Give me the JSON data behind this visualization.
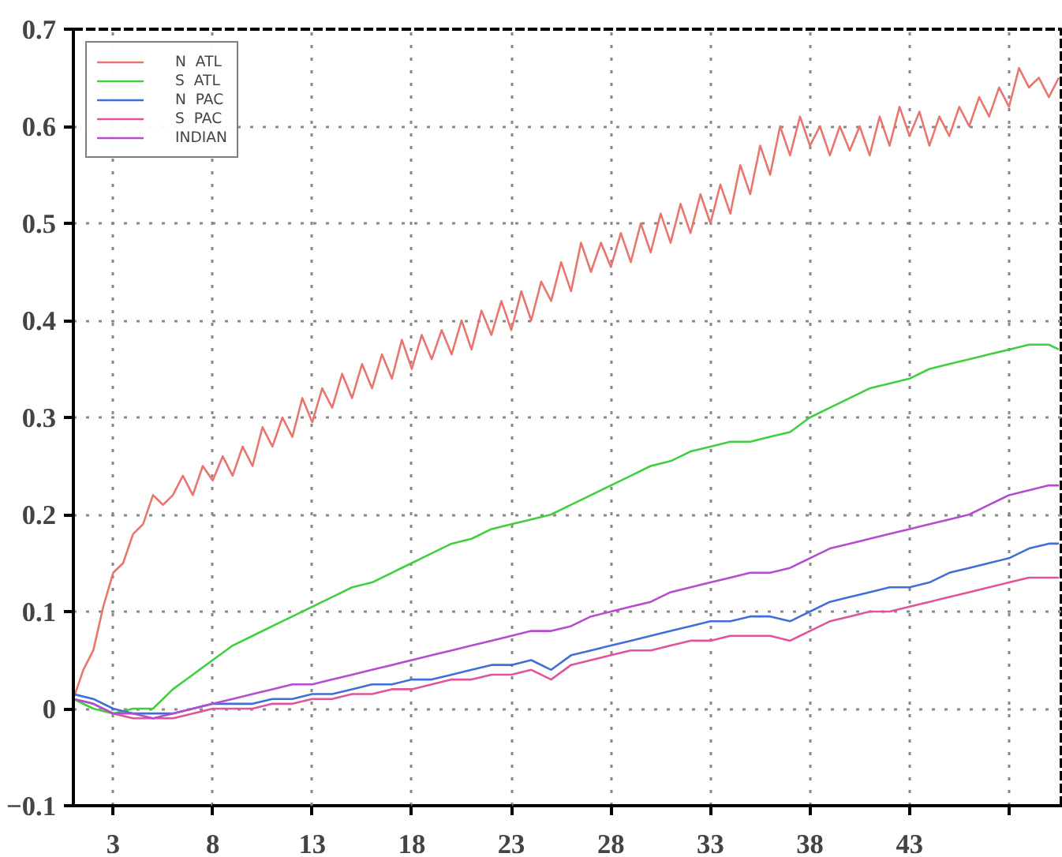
{
  "chart_data": {
    "type": "line",
    "xlim": [
      1,
      50.7
    ],
    "ylim": [
      -0.1,
      0.7
    ],
    "xticks": [
      3,
      8,
      13,
      18,
      23,
      28,
      33,
      38,
      43,
      {
        "value": 48,
        "label": null
      }
    ],
    "yticks": [
      -0.1,
      0,
      0.1,
      0.2,
      0.3,
      0.4,
      0.5,
      0.6,
      0.7
    ],
    "grid": true,
    "legend": "top left",
    "line_style": "solid",
    "marker": "none",
    "series": [
      {
        "name": "N  ATL",
        "color": "#e8766f",
        "x": [
          1,
          1.5,
          2,
          2.5,
          3,
          3.5,
          4,
          4.5,
          5,
          5.5,
          6,
          6.5,
          7,
          7.5,
          8,
          8.5,
          9,
          9.5,
          10,
          10.5,
          11,
          11.5,
          12,
          12.5,
          13,
          13.5,
          14,
          14.5,
          15,
          15.5,
          16,
          16.5,
          17,
          17.5,
          18,
          18.5,
          19,
          19.5,
          20,
          20.5,
          21,
          21.5,
          22,
          22.5,
          23,
          23.5,
          24,
          24.5,
          25,
          25.5,
          26,
          26.5,
          27,
          27.5,
          28,
          28.5,
          29,
          29.5,
          30,
          30.5,
          31,
          31.5,
          32,
          32.5,
          33,
          33.5,
          34,
          34.5,
          35,
          35.5,
          36,
          36.5,
          37,
          37.5,
          38,
          38.5,
          39,
          39.5,
          40,
          40.5,
          41,
          41.5,
          42,
          42.5,
          43,
          43.5,
          44,
          44.5,
          45,
          45.5,
          46,
          46.5,
          47,
          47.5,
          48,
          48.5,
          49,
          49.5,
          50,
          50.5
        ],
        "values": [
          0.01,
          0.04,
          0.06,
          0.105,
          0.14,
          0.15,
          0.18,
          0.19,
          0.22,
          0.21,
          0.22,
          0.24,
          0.22,
          0.25,
          0.235,
          0.26,
          0.24,
          0.27,
          0.25,
          0.29,
          0.27,
          0.3,
          0.28,
          0.32,
          0.295,
          0.33,
          0.31,
          0.345,
          0.32,
          0.355,
          0.33,
          0.365,
          0.34,
          0.38,
          0.35,
          0.385,
          0.36,
          0.39,
          0.365,
          0.4,
          0.37,
          0.41,
          0.385,
          0.42,
          0.39,
          0.43,
          0.4,
          0.44,
          0.42,
          0.46,
          0.43,
          0.48,
          0.45,
          0.48,
          0.455,
          0.49,
          0.46,
          0.5,
          0.47,
          0.51,
          0.48,
          0.52,
          0.49,
          0.53,
          0.5,
          0.54,
          0.51,
          0.56,
          0.53,
          0.58,
          0.55,
          0.6,
          0.57,
          0.61,
          0.58,
          0.6,
          0.57,
          0.6,
          0.575,
          0.6,
          0.57,
          0.61,
          0.58,
          0.62,
          0.59,
          0.615,
          0.58,
          0.61,
          0.59,
          0.62,
          0.6,
          0.63,
          0.61,
          0.64,
          0.62,
          0.66,
          0.64,
          0.65,
          0.63,
          0.65
        ]
      },
      {
        "name": "S  ATL",
        "color": "#3fcf3f",
        "x": [
          1,
          2,
          3,
          4,
          5,
          6,
          7,
          8,
          9,
          10,
          11,
          12,
          13,
          14,
          15,
          16,
          17,
          18,
          19,
          20,
          21,
          22,
          23,
          24,
          25,
          26,
          27,
          28,
          29,
          30,
          31,
          32,
          33,
          34,
          35,
          36,
          37,
          38,
          39,
          40,
          41,
          42,
          43,
          44,
          45,
          46,
          47,
          48,
          49,
          50,
          50.5
        ],
        "values": [
          0.01,
          0.0,
          -0.005,
          0.0,
          0.0,
          0.02,
          0.035,
          0.05,
          0.065,
          0.075,
          0.085,
          0.095,
          0.105,
          0.115,
          0.125,
          0.13,
          0.14,
          0.15,
          0.16,
          0.17,
          0.175,
          0.185,
          0.19,
          0.195,
          0.2,
          0.21,
          0.22,
          0.23,
          0.24,
          0.25,
          0.255,
          0.265,
          0.27,
          0.275,
          0.275,
          0.28,
          0.285,
          0.3,
          0.31,
          0.32,
          0.33,
          0.335,
          0.34,
          0.35,
          0.355,
          0.36,
          0.365,
          0.37,
          0.375,
          0.375,
          0.37
        ]
      },
      {
        "name": "N  PAC",
        "color": "#3f6fd6",
        "x": [
          1,
          2,
          3,
          4,
          5,
          6,
          7,
          8,
          9,
          10,
          11,
          12,
          13,
          14,
          15,
          16,
          17,
          18,
          19,
          20,
          21,
          22,
          23,
          24,
          25,
          26,
          27,
          28,
          29,
          30,
          31,
          32,
          33,
          34,
          35,
          36,
          37,
          38,
          39,
          40,
          41,
          42,
          43,
          44,
          45,
          46,
          47,
          48,
          49,
          50,
          50.5
        ],
        "values": [
          0.015,
          0.01,
          0.0,
          -0.005,
          -0.005,
          -0.005,
          0.0,
          0.005,
          0.005,
          0.005,
          0.01,
          0.01,
          0.015,
          0.015,
          0.02,
          0.025,
          0.025,
          0.03,
          0.03,
          0.035,
          0.04,
          0.045,
          0.045,
          0.05,
          0.04,
          0.055,
          0.06,
          0.065,
          0.07,
          0.075,
          0.08,
          0.085,
          0.09,
          0.09,
          0.095,
          0.095,
          0.09,
          0.1,
          0.11,
          0.115,
          0.12,
          0.125,
          0.125,
          0.13,
          0.14,
          0.145,
          0.15,
          0.155,
          0.165,
          0.17,
          0.17
        ]
      },
      {
        "name": "S  PAC",
        "color": "#e0559a",
        "x": [
          1,
          2,
          3,
          4,
          5,
          6,
          7,
          8,
          9,
          10,
          11,
          12,
          13,
          14,
          15,
          16,
          17,
          18,
          19,
          20,
          21,
          22,
          23,
          24,
          25,
          26,
          27,
          28,
          29,
          30,
          31,
          32,
          33,
          34,
          35,
          36,
          37,
          38,
          39,
          40,
          41,
          42,
          43,
          44,
          45,
          46,
          47,
          48,
          49,
          50,
          50.5
        ],
        "values": [
          0.01,
          0.005,
          -0.005,
          -0.01,
          -0.01,
          -0.01,
          -0.005,
          0.0,
          0.0,
          0.0,
          0.005,
          0.005,
          0.01,
          0.01,
          0.015,
          0.015,
          0.02,
          0.02,
          0.025,
          0.03,
          0.03,
          0.035,
          0.035,
          0.04,
          0.03,
          0.045,
          0.05,
          0.055,
          0.06,
          0.06,
          0.065,
          0.07,
          0.07,
          0.075,
          0.075,
          0.075,
          0.07,
          0.08,
          0.09,
          0.095,
          0.1,
          0.1,
          0.105,
          0.11,
          0.115,
          0.12,
          0.125,
          0.13,
          0.135,
          0.135,
          0.135
        ]
      },
      {
        "name": "INDIAN",
        "color": "#b64bd0",
        "x": [
          1,
          2,
          3,
          4,
          5,
          6,
          7,
          8,
          9,
          10,
          11,
          12,
          13,
          14,
          15,
          16,
          17,
          18,
          19,
          20,
          21,
          22,
          23,
          24,
          25,
          26,
          27,
          28,
          29,
          30,
          31,
          32,
          33,
          34,
          35,
          36,
          37,
          38,
          39,
          40,
          41,
          42,
          43,
          44,
          45,
          46,
          47,
          48,
          49,
          50,
          50.5
        ],
        "values": [
          0.01,
          0.005,
          -0.005,
          -0.005,
          -0.01,
          -0.005,
          0.0,
          0.005,
          0.01,
          0.015,
          0.02,
          0.025,
          0.025,
          0.03,
          0.035,
          0.04,
          0.045,
          0.05,
          0.055,
          0.06,
          0.065,
          0.07,
          0.075,
          0.08,
          0.08,
          0.085,
          0.095,
          0.1,
          0.105,
          0.11,
          0.12,
          0.125,
          0.13,
          0.135,
          0.14,
          0.14,
          0.145,
          0.155,
          0.165,
          0.17,
          0.175,
          0.18,
          0.185,
          0.19,
          0.195,
          0.2,
          0.21,
          0.22,
          0.225,
          0.23,
          0.23
        ]
      }
    ]
  }
}
